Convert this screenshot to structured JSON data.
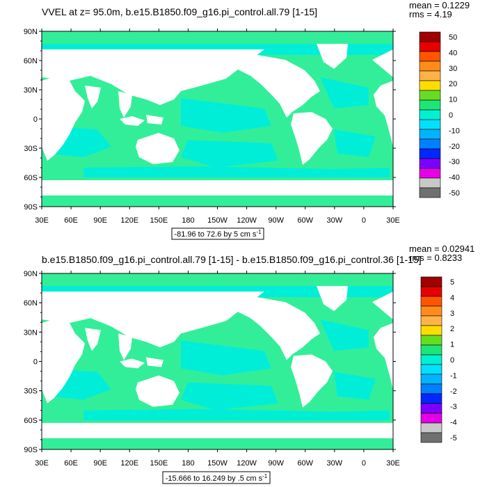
{
  "panels": [
    {
      "title": "VVEL at z=  95.0m, b.e15.B1850.f09_g16.pi_control.all.79 [1-15]",
      "mean_label": "mean = 0.1229",
      "rms_label": "rms = 4.19",
      "range_label": "-81.96 to 72.6 by 5 cm s",
      "range_sup": "-1",
      "colorbar_labels": [
        "50",
        "40",
        "30",
        "20",
        "10",
        "0",
        "-10",
        "-20",
        "-30",
        "-40",
        "-50"
      ]
    },
    {
      "title": "b.e15.B1850.f09_g16.pi_control.all.79 [1-15] - b.e15.B1850.f09_g16.pi_control.36 [1-15]",
      "mean_label": "mean = 0.02941",
      "rms_label": "rms = 0.8233",
      "range_label": "-15.666 to 16.249 by .5 cm s",
      "range_sup": "-1",
      "colorbar_labels": [
        "5",
        "4",
        "3",
        "2",
        "1",
        "0",
        "-1",
        "-2",
        "-3",
        "-4",
        "-5"
      ]
    }
  ],
  "axes": {
    "lat_labels": [
      "90N",
      "60N",
      "30N",
      "0",
      "30S",
      "60S",
      "90S"
    ],
    "lon_labels": [
      "30E",
      "60E",
      "90E",
      "120E",
      "150E",
      "180",
      "150W",
      "120W",
      "90W",
      "60W",
      "30W",
      "0",
      "30E"
    ]
  },
  "colorbar_colors": [
    "#a00000",
    "#e60000",
    "#ff5500",
    "#ff8c1a",
    "#ffb347",
    "#ffdd00",
    "#66dd22",
    "#1ee676",
    "#00f0d2",
    "#00e0ff",
    "#00b4ff",
    "#0080ff",
    "#0028ff",
    "#7d00ff",
    "#e600e6",
    "#c8c8c8",
    "#707070"
  ],
  "colors": {
    "ocean_base": "#33ee99",
    "ocean_cyan": "#00eed8",
    "land": "#ffffff"
  }
}
